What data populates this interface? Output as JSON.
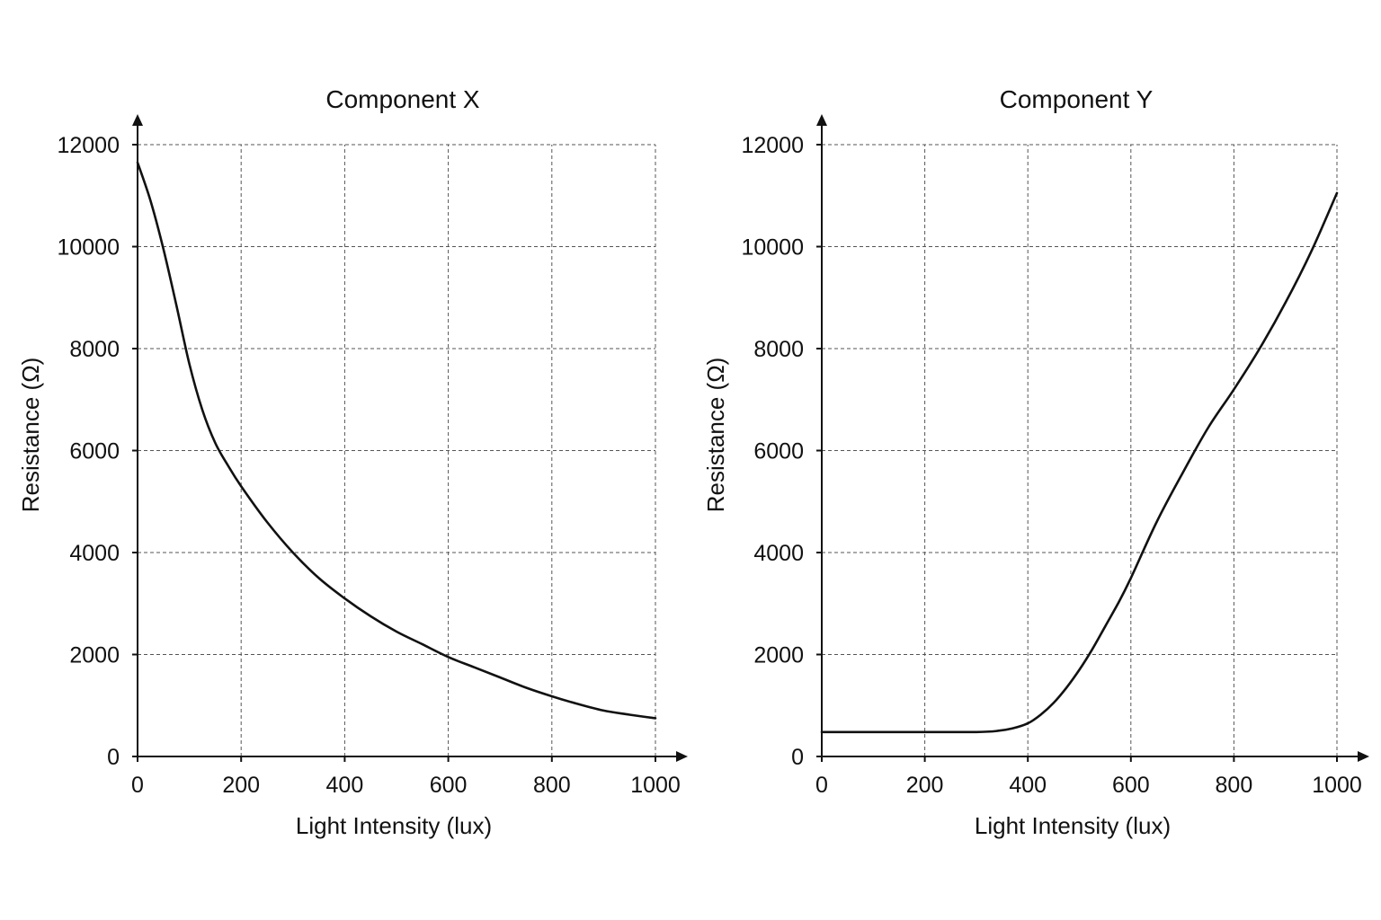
{
  "chart_data": [
    {
      "type": "line",
      "title": "Component X",
      "xlabel": "Light Intensity (lux)",
      "ylabel": "Resistance (Ω)",
      "xlim": [
        0,
        1000
      ],
      "ylim": [
        0,
        12000
      ],
      "xticks": [
        "0",
        "200",
        "400",
        "600",
        "800",
        "1000"
      ],
      "yticks": [
        "0",
        "2000",
        "4000",
        "6000",
        "8000",
        "10000",
        "12000"
      ],
      "grid": true,
      "series": [
        {
          "color": "#111111",
          "x": [
            0,
            25,
            50,
            75,
            100,
            125,
            150,
            175,
            200,
            250,
            300,
            350,
            400,
            450,
            500,
            550,
            600,
            650,
            700,
            750,
            800,
            850,
            900,
            950,
            1000
          ],
          "y": [
            11650,
            10900,
            9950,
            8850,
            7700,
            6800,
            6150,
            5700,
            5300,
            4600,
            4000,
            3500,
            3100,
            2750,
            2450,
            2200,
            1950,
            1750,
            1550,
            1350,
            1180,
            1030,
            900,
            820,
            750
          ]
        }
      ]
    },
    {
      "type": "line",
      "title": "Component Y",
      "xlabel": "Light Intensity (lux)",
      "ylabel": "Resistance (Ω)",
      "xlim": [
        0,
        1000
      ],
      "ylim": [
        0,
        12000
      ],
      "xticks": [
        "0",
        "200",
        "400",
        "600",
        "800",
        "1000"
      ],
      "yticks": [
        "0",
        "2000",
        "4000",
        "6000",
        "8000",
        "10000",
        "12000"
      ],
      "grid": true,
      "series": [
        {
          "color": "#111111",
          "x": [
            0,
            100,
            200,
            300,
            340,
            370,
            400,
            425,
            450,
            475,
            500,
            525,
            550,
            575,
            600,
            650,
            700,
            750,
            800,
            850,
            900,
            950,
            1000
          ],
          "y": [
            480,
            480,
            480,
            480,
            500,
            550,
            650,
            820,
            1050,
            1350,
            1700,
            2100,
            2550,
            3000,
            3500,
            4600,
            5550,
            6450,
            7200,
            8000,
            8900,
            9900,
            11050
          ]
        }
      ]
    }
  ]
}
